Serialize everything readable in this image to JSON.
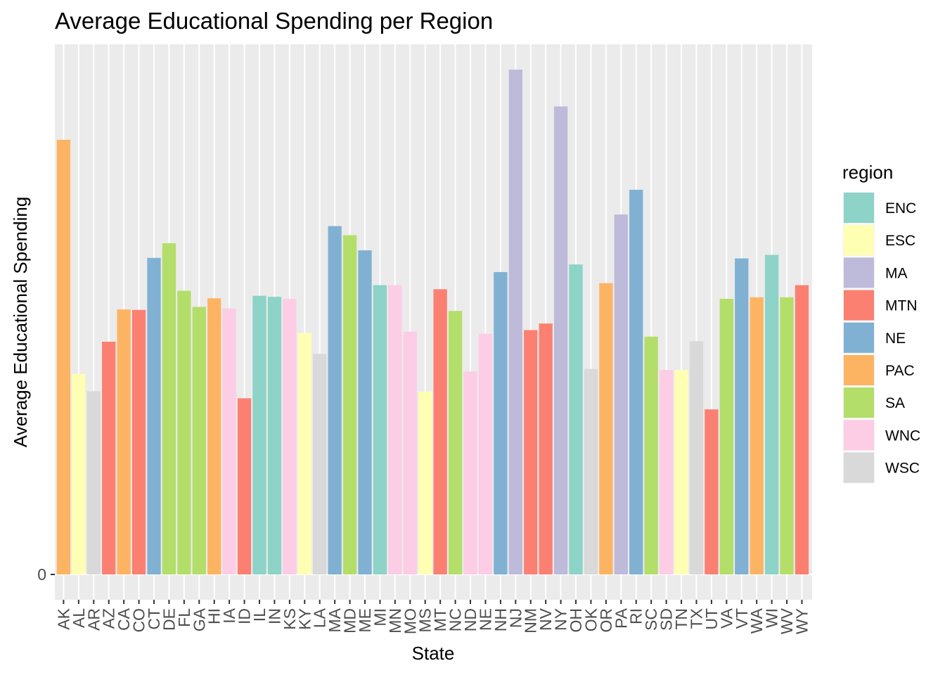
{
  "chart_data": {
    "type": "bar",
    "title": "Average Educational Spending per Region",
    "xlabel": "State",
    "ylabel": "Average Educational Spending",
    "y_tick_labels": [
      "0"
    ],
    "ylim": [
      0,
      1.1
    ],
    "grid": true,
    "legend_position": "right",
    "legend_title": "region",
    "legend": [
      {
        "name": "ENC",
        "color": "#8DD3C7"
      },
      {
        "name": "ESC",
        "color": "#FFFFB3"
      },
      {
        "name": "MA",
        "color": "#BEBADA"
      },
      {
        "name": "MTN",
        "color": "#FB8072"
      },
      {
        "name": "NE",
        "color": "#80B1D3"
      },
      {
        "name": "PAC",
        "color": "#FDB462"
      },
      {
        "name": "SA",
        "color": "#B3DE69"
      },
      {
        "name": "WNC",
        "color": "#FCCDE5"
      },
      {
        "name": "WSC",
        "color": "#D9D9D9"
      }
    ],
    "categories": [
      "AK",
      "AL",
      "AR",
      "AZ",
      "CA",
      "CO",
      "CT",
      "DE",
      "FL",
      "GA",
      "HI",
      "IA",
      "ID",
      "IL",
      "IN",
      "KS",
      "KY",
      "LA",
      "MA",
      "MD",
      "ME",
      "MI",
      "MN",
      "MO",
      "MS",
      "MT",
      "NC",
      "ND",
      "NE",
      "NH",
      "NJ",
      "NM",
      "NV",
      "NY",
      "OH",
      "OK",
      "OR",
      "PA",
      "RI",
      "SC",
      "SD",
      "TN",
      "TX",
      "UT",
      "VA",
      "VT",
      "WA",
      "WI",
      "WV",
      "WY"
    ],
    "regions": [
      "PAC",
      "ESC",
      "WSC",
      "MTN",
      "PAC",
      "MTN",
      "NE",
      "SA",
      "SA",
      "SA",
      "PAC",
      "WNC",
      "MTN",
      "ENC",
      "ENC",
      "WNC",
      "ESC",
      "WSC",
      "NE",
      "SA",
      "NE",
      "ENC",
      "WNC",
      "WNC",
      "ESC",
      "MTN",
      "SA",
      "WNC",
      "WNC",
      "NE",
      "MA",
      "MTN",
      "MTN",
      "MA",
      "ENC",
      "WSC",
      "PAC",
      "MA",
      "NE",
      "SA",
      "WNC",
      "ESC",
      "WSC",
      "MTN",
      "SA",
      "NE",
      "PAC",
      "ENC",
      "SA",
      "MTN"
    ],
    "values": [
      0.861,
      0.397,
      0.363,
      0.461,
      0.525,
      0.524,
      0.627,
      0.656,
      0.562,
      0.53,
      0.547,
      0.527,
      0.349,
      0.552,
      0.55,
      0.546,
      0.478,
      0.437,
      0.69,
      0.672,
      0.642,
      0.573,
      0.573,
      0.481,
      0.362,
      0.565,
      0.522,
      0.402,
      0.477,
      0.599,
      1.0,
      0.484,
      0.497,
      0.927,
      0.614,
      0.407,
      0.577,
      0.713,
      0.762,
      0.471,
      0.405,
      0.405,
      0.462,
      0.327,
      0.546,
      0.626,
      0.549,
      0.633,
      0.549,
      0.573
    ]
  }
}
